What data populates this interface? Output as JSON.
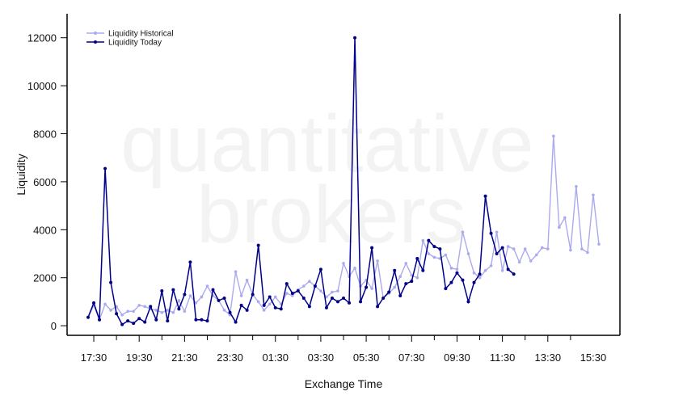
{
  "chart_data": {
    "type": "line",
    "title": "",
    "xlabel": "Exchange Time",
    "ylabel": "Liquidity",
    "watermark": [
      "quantitative",
      "brokers"
    ],
    "x_tick_labels": [
      "17:30",
      "19:30",
      "21:30",
      "23:30",
      "01:30",
      "03:30",
      "05:30",
      "07:30",
      "09:30",
      "11:30",
      "13:30",
      "15:30"
    ],
    "y_tick_labels": [
      "0",
      "2000",
      "4000",
      "6000",
      "8000",
      "10000",
      "12000"
    ],
    "ylim": [
      -400,
      13000
    ],
    "legend_position": "top-left",
    "grid": false,
    "series": [
      {
        "name": "Liquidity Historical",
        "color": "#aaaaee",
        "values": [
          350,
          850,
          250,
          900,
          650,
          800,
          450,
          600,
          600,
          850,
          800,
          700,
          650,
          550,
          650,
          550,
          1050,
          600,
          1250,
          950,
          1200,
          1650,
          1250,
          1050,
          650,
          450,
          2250,
          1250,
          1900,
          1300,
          1000,
          650,
          900,
          1200,
          900,
          1350,
          1250,
          1500,
          1650,
          1850,
          1650,
          1450,
          1200,
          1400,
          1450,
          2600,
          2050,
          2400,
          1650,
          1900,
          1550,
          2700,
          1150,
          1350,
          1600,
          2050,
          2600,
          2100,
          2000,
          3550,
          3000,
          2850,
          2800,
          2950,
          2400,
          2350,
          3900,
          3000,
          2200,
          2000,
          2300,
          2500,
          3900,
          2300,
          3300,
          3200,
          2650,
          3200,
          2700,
          2950,
          3250,
          3200,
          7900,
          4100,
          4500,
          3150,
          5800,
          3200,
          3050,
          5450,
          3400
        ]
      },
      {
        "name": "Liquidity Today",
        "color": "#000088",
        "values": [
          350,
          950,
          250,
          6550,
          1800,
          500,
          50,
          200,
          100,
          300,
          150,
          800,
          250,
          1450,
          200,
          1500,
          700,
          1300,
          2650,
          250,
          250,
          200,
          1500,
          1050,
          1150,
          550,
          150,
          850,
          650,
          1300,
          3350,
          850,
          1200,
          750,
          700,
          1750,
          1350,
          1450,
          1150,
          800,
          1650,
          2350,
          750,
          1150,
          1000,
          1150,
          950,
          12000,
          1000,
          1600,
          3250,
          800,
          1150,
          1400,
          2300,
          1250,
          1750,
          1850,
          2800,
          2300,
          3550,
          3300,
          3200,
          1550,
          1800,
          2200,
          1900,
          1000,
          1800,
          2150,
          5400,
          3850,
          3000,
          3250,
          2350,
          2150
        ]
      }
    ]
  }
}
